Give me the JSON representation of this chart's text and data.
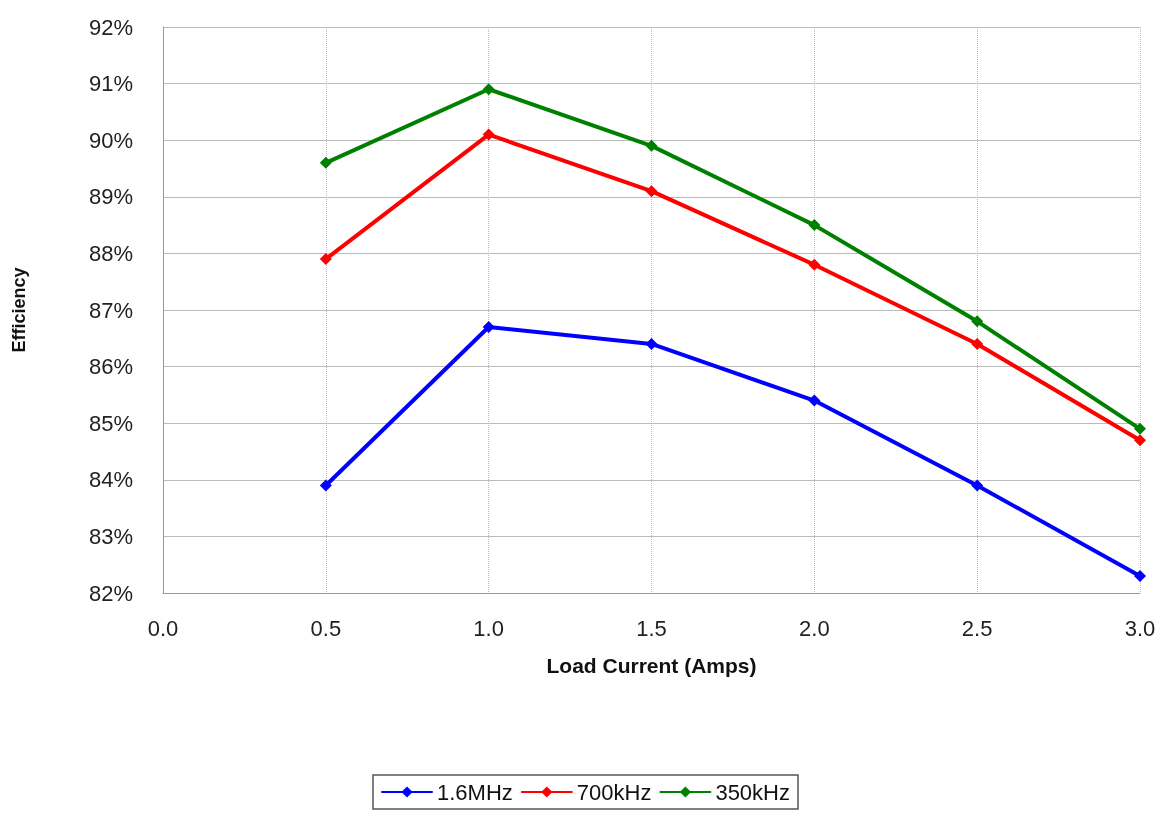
{
  "chart_data": {
    "type": "line",
    "xlabel": "Load Current (Amps)",
    "ylabel": "Efficiency",
    "x": [
      0.5,
      1.0,
      1.5,
      2.0,
      2.5,
      3.0
    ],
    "series": [
      {
        "name": "1.6MHz",
        "color": "#0000ff",
        "values": [
          83.9,
          86.7,
          86.4,
          85.4,
          83.9,
          82.3
        ]
      },
      {
        "name": "700kHz",
        "color": "#ff0000",
        "values": [
          87.9,
          90.1,
          89.1,
          87.8,
          86.4,
          84.7
        ]
      },
      {
        "name": "350kHz",
        "color": "#008000",
        "values": [
          89.6,
          90.9,
          89.9,
          88.5,
          86.8,
          84.9
        ]
      }
    ],
    "xlim": [
      0,
      3
    ],
    "xticks": [
      {
        "value": 0,
        "label": "0.0"
      },
      {
        "value": 0.5,
        "label": "0.5"
      },
      {
        "value": 1,
        "label": "1.0"
      },
      {
        "value": 1.5,
        "label": "1.5"
      },
      {
        "value": 2,
        "label": "2.0"
      },
      {
        "value": 2.5,
        "label": "2.5"
      },
      {
        "value": 3,
        "label": "3.0"
      }
    ],
    "ylim": [
      82,
      92
    ],
    "yticks": [
      {
        "value": 82,
        "label": "82%"
      },
      {
        "value": 83,
        "label": "83%"
      },
      {
        "value": 84,
        "label": "84%"
      },
      {
        "value": 85,
        "label": "85%"
      },
      {
        "value": 86,
        "label": "86%"
      },
      {
        "value": 87,
        "label": "87%"
      },
      {
        "value": 88,
        "label": "88%"
      },
      {
        "value": 89,
        "label": "89%"
      },
      {
        "value": 90,
        "label": "90%"
      },
      {
        "value": 91,
        "label": "91%"
      },
      {
        "value": 92,
        "label": "92%"
      }
    ],
    "grid": true,
    "legend": "bottom",
    "marker": "diamond",
    "line_style": "solid"
  }
}
